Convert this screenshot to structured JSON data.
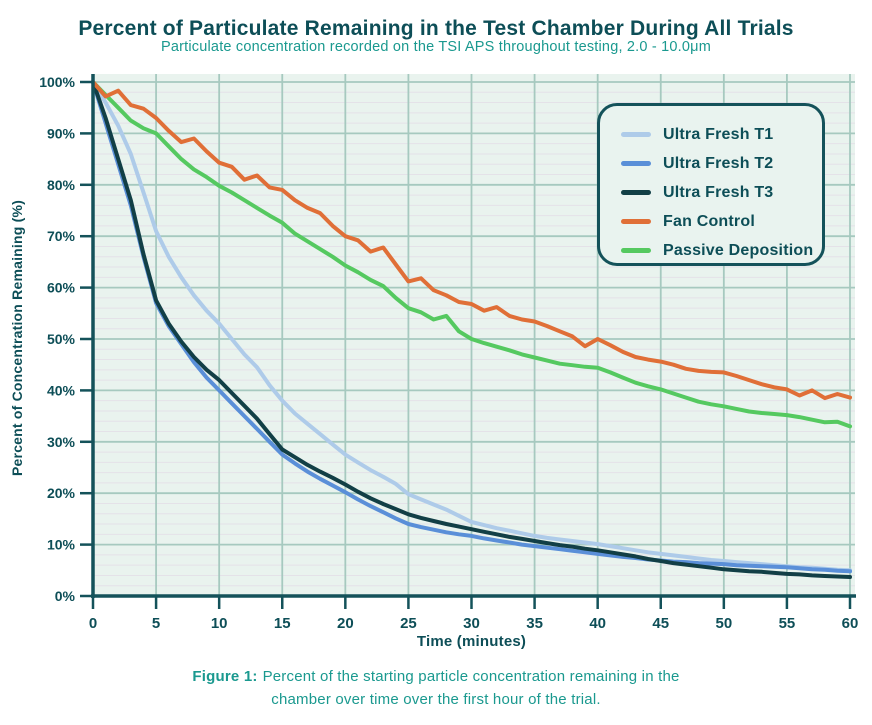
{
  "header": {
    "title": "Percent of Particulate Remaining in the Test Chamber During All Trials",
    "subtitle": "Particulate concentration recorded on the TSI APS throughout testing, 2.0 - 10.0μm"
  },
  "caption": {
    "label": "Figure 1:",
    "text1": "Percent of the starting particle concentration remaining in the",
    "text2": "chamber over time over the first hour of the trial."
  },
  "colors": {
    "title_text": "#0d4e57",
    "subtitle_text": "#1a998f",
    "axis": "#14525a",
    "major_grid": "#a6c9bf",
    "minor_grid": "#e4e2e8",
    "plot_bg": "#e9f3ee",
    "legend_border": "#14525a",
    "legend_bg": "#e9f3ef"
  },
  "chart_data": {
    "type": "line",
    "title": "Percent of Particulate Remaining in the Test Chamber During All Trials",
    "subtitle": "Particulate concentration recorded on the TSI APS throughout testing, 2.0 - 10.0μm",
    "xlabel": "Time (minutes)",
    "ylabel": "Percent of Concentration Remaining (%)",
    "xlim": [
      0,
      60
    ],
    "ylim": [
      0,
      100
    ],
    "grid": "major teal gridlines every 5 min (x) and 10% (y); faint minor lines every 2% (y)",
    "legend_position": "top-right inset box",
    "x_ticks": [
      0,
      5,
      10,
      15,
      20,
      25,
      30,
      35,
      40,
      45,
      50,
      55,
      60
    ],
    "x_tick_labels": [
      "0",
      "5",
      "10",
      "15",
      "20",
      "25",
      "30",
      "35",
      "40",
      "45",
      "50",
      "55",
      "60"
    ],
    "y_ticks": [
      0,
      10,
      20,
      30,
      40,
      50,
      60,
      70,
      80,
      90,
      100
    ],
    "y_tick_labels": [
      "0%",
      "10%",
      "20%",
      "30%",
      "40%",
      "50%",
      "60%",
      "70%",
      "80%",
      "90%",
      "100%"
    ],
    "x_start": 0,
    "x_step_minutes": 1,
    "series": [
      {
        "name": "Ultra Fresh T1",
        "color": "#aecbe9",
        "values": [
          100,
          96,
          91.5,
          86,
          78.5,
          71,
          66,
          62,
          58.5,
          55.5,
          53,
          50,
          47,
          44.5,
          41,
          38,
          35.5,
          33.5,
          31.5,
          29.5,
          27.5,
          26,
          24.5,
          23.2,
          21.8,
          19.8,
          18.8,
          17.8,
          16.8,
          15.6,
          14.4,
          13.8,
          13.2,
          12.7,
          12.2,
          11.7,
          11.3,
          11,
          10.7,
          10.4,
          10.1,
          9.7,
          9.3,
          8.9,
          8.5,
          8.2,
          7.9,
          7.6,
          7.3,
          7,
          6.8,
          6.6,
          6.4,
          6.2,
          6,
          5.8,
          5.6,
          5.5,
          5.3,
          5.1,
          5
        ]
      },
      {
        "name": "Ultra Fresh T2",
        "color": "#5a8fd8",
        "values": [
          100,
          92,
          84,
          76,
          66,
          57,
          52.5,
          49,
          45.5,
          42.5,
          40,
          37.5,
          35,
          32.5,
          30,
          27.5,
          25.8,
          24.2,
          22.8,
          21.5,
          20.2,
          18.8,
          17.5,
          16.3,
          15.1,
          14,
          13.4,
          12.9,
          12.4,
          12,
          11.7,
          11.2,
          10.8,
          10.4,
          10,
          9.7,
          9.4,
          9.1,
          8.8,
          8.5,
          8.2,
          7.9,
          7.6,
          7.4,
          7.1,
          6.9,
          6.7,
          6.6,
          6.4,
          6.3,
          6.2,
          6,
          5.9,
          5.8,
          5.7,
          5.6,
          5.4,
          5.2,
          5.1,
          4.9,
          4.8
        ]
      },
      {
        "name": "Ultra Fresh T3",
        "color": "#123f46",
        "values": [
          100,
          93,
          85,
          77,
          66.5,
          57.5,
          53,
          49.5,
          46.5,
          44,
          42,
          39.5,
          37,
          34.5,
          31.5,
          28.5,
          27,
          25.5,
          24.2,
          23,
          21.7,
          20.3,
          19,
          17.9,
          16.9,
          15.9,
          15.2,
          14.6,
          14,
          13.5,
          13,
          12.5,
          12,
          11.5,
          11.1,
          10.7,
          10.3,
          9.9,
          9.6,
          9.2,
          8.9,
          8.5,
          8.1,
          7.7,
          7.2,
          6.8,
          6.4,
          6.1,
          5.8,
          5.5,
          5.2,
          5,
          4.8,
          4.7,
          4.5,
          4.3,
          4.2,
          4,
          3.9,
          3.8,
          3.7
        ]
      },
      {
        "name": "Fan Control",
        "color": "#e06f37",
        "values": [
          100,
          97.2,
          98.3,
          95.5,
          94.8,
          93,
          90.5,
          88.3,
          89,
          86.5,
          84.3,
          83.5,
          81,
          81.8,
          79.5,
          79,
          77,
          75.5,
          74.5,
          72,
          70,
          69.2,
          67,
          67.8,
          64.5,
          61.2,
          61.8,
          59.5,
          58.5,
          57.2,
          56.8,
          55.5,
          56.2,
          54.5,
          53.8,
          53.4,
          52.5,
          51.5,
          50.5,
          48.6,
          50,
          48.8,
          47.5,
          46.5,
          46,
          45.6,
          45,
          44.2,
          43.8,
          43.6,
          43.5,
          42.8,
          42,
          41.2,
          40.6,
          40.2,
          39,
          40,
          38.5,
          39.3,
          38.6
        ]
      },
      {
        "name": "Passive Deposition",
        "color": "#55c960",
        "values": [
          100,
          97.5,
          95,
          92.5,
          91,
          90,
          87.5,
          85,
          83,
          81.5,
          79.8,
          78.5,
          77,
          75.5,
          74,
          72.6,
          70.5,
          69,
          67.5,
          66,
          64.3,
          63,
          61.5,
          60.3,
          58,
          56,
          55.2,
          53.8,
          54.5,
          51.5,
          50,
          49.2,
          48.5,
          47.8,
          47,
          46.4,
          45.8,
          45.2,
          44.9,
          44.6,
          44.4,
          43.5,
          42.5,
          41.5,
          40.8,
          40.2,
          39.4,
          38.6,
          37.8,
          37.3,
          36.9,
          36.4,
          35.9,
          35.6,
          35.4,
          35.2,
          34.8,
          34.3,
          33.8,
          33.9,
          33
        ]
      }
    ]
  }
}
